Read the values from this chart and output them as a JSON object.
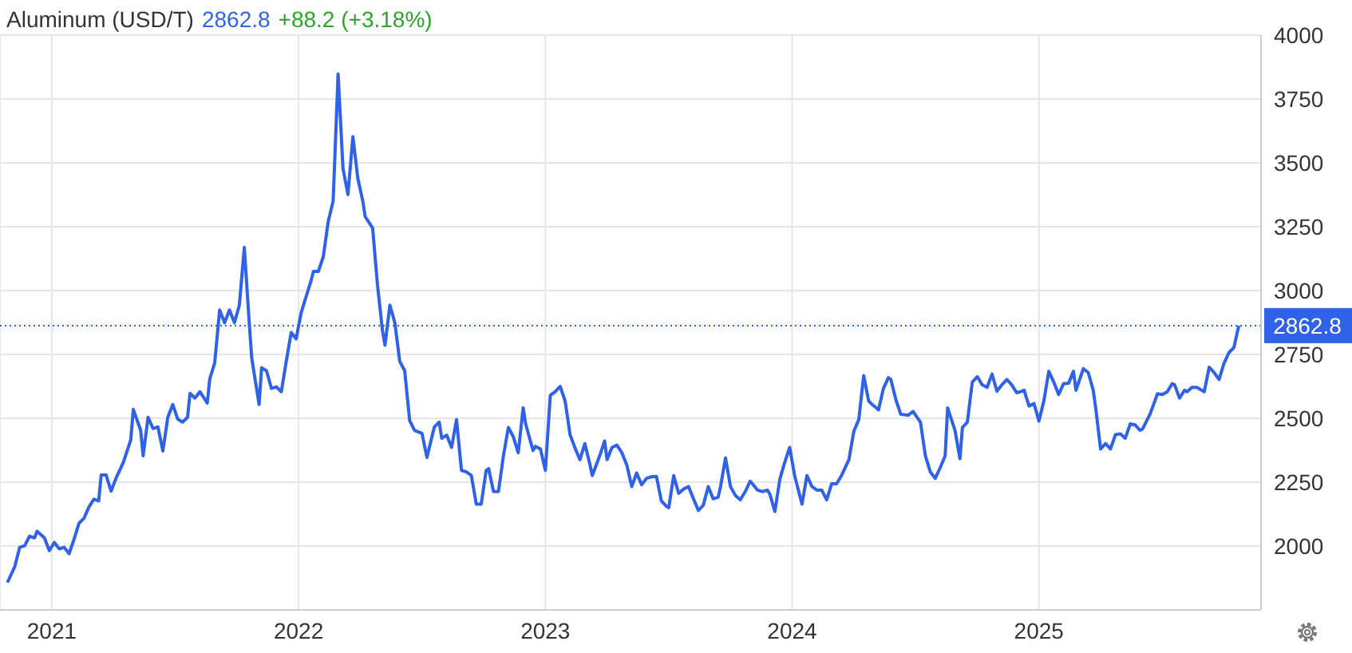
{
  "chart_data": {
    "type": "line",
    "title": "Aluminum (USD/T)",
    "annotations": [
      "2862.8",
      "+88.2 (+3.18%)"
    ],
    "x": [
      2020.82,
      2020.85,
      2020.87,
      2020.89,
      2020.91,
      2020.93,
      2020.94,
      2020.97,
      2020.99,
      2021.01,
      2021.03,
      2021.05,
      2021.07,
      2021.09,
      2021.11,
      2021.13,
      2021.15,
      2021.17,
      2021.19,
      2021.2,
      2021.22,
      2021.24,
      2021.26,
      2021.29,
      2021.32,
      2021.33,
      2021.36,
      2021.37,
      2021.39,
      2021.41,
      2021.43,
      2021.45,
      2021.47,
      2021.49,
      2021.51,
      2021.53,
      2021.55,
      2021.56,
      2021.58,
      2021.6,
      2021.63,
      2021.64,
      2021.66,
      2021.68,
      2021.7,
      2021.72,
      2021.74,
      2021.76,
      2021.78,
      2021.8,
      2021.81,
      2021.84,
      2021.85,
      2021.87,
      2021.89,
      2021.91,
      2021.93,
      2021.95,
      2021.97,
      2021.99,
      2022.01,
      2022.03,
      2022.05,
      2022.06,
      2022.08,
      2022.1,
      2022.12,
      2022.14,
      2022.16,
      2022.18,
      2022.2,
      2022.22,
      2022.24,
      2022.26,
      2022.27,
      2022.3,
      2022.32,
      2022.34,
      2022.35,
      2022.37,
      2022.39,
      2022.41,
      2022.43,
      2022.45,
      2022.47,
      2022.5,
      2022.52,
      2022.55,
      2022.57,
      2022.58,
      2022.6,
      2022.62,
      2022.64,
      2022.66,
      2022.68,
      2022.7,
      2022.72,
      2022.74,
      2022.76,
      2022.77,
      2022.79,
      2022.81,
      2022.83,
      2022.85,
      2022.87,
      2022.89,
      2022.91,
      2022.92,
      2022.95,
      2022.96,
      2022.98,
      2023.0,
      2023.02,
      2023.04,
      2023.06,
      2023.08,
      2023.1,
      2023.12,
      2023.14,
      2023.16,
      2023.18,
      2023.19,
      2023.22,
      2023.24,
      2023.25,
      2023.27,
      2023.29,
      2023.31,
      2023.33,
      2023.35,
      2023.37,
      2023.39,
      2023.41,
      2023.43,
      2023.45,
      2023.47,
      2023.49,
      2023.5,
      2023.52,
      2023.54,
      2023.56,
      2023.58,
      2023.6,
      2023.62,
      2023.64,
      2023.66,
      2023.68,
      2023.7,
      2023.71,
      2023.73,
      2023.75,
      2023.77,
      2023.79,
      2023.81,
      2023.83,
      2023.86,
      2023.88,
      2023.9,
      2023.91,
      2023.93,
      2023.95,
      2023.97,
      2023.99,
      2024.01,
      2024.04,
      2024.06,
      2024.08,
      2024.1,
      2024.12,
      2024.14,
      2024.16,
      2024.18,
      2024.2,
      2024.23,
      2024.25,
      2024.27,
      2024.29,
      2024.31,
      2024.32,
      2024.35,
      2024.37,
      2024.39,
      2024.4,
      2024.42,
      2024.44,
      2024.47,
      2024.49,
      2024.52,
      2024.54,
      2024.56,
      2024.58,
      2024.6,
      2024.62,
      2024.63,
      2024.66,
      2024.68,
      2024.69,
      2024.71,
      2024.73,
      2024.75,
      2024.77,
      2024.79,
      2024.81,
      2024.83,
      2024.85,
      2024.87,
      2024.89,
      2024.91,
      2024.93,
      2024.94,
      2024.96,
      2024.98,
      2025.0,
      2025.02,
      2025.04,
      2025.06,
      2025.08,
      2025.1,
      2025.12,
      2025.14,
      2025.15,
      2025.18,
      2025.2,
      2025.22,
      2025.23,
      2025.25,
      2025.27,
      2025.29,
      2025.31,
      2025.33,
      2025.35,
      2025.37,
      2025.39,
      2025.41,
      2025.42,
      2025.45,
      2025.47,
      2025.48,
      2025.5,
      2025.52,
      2025.54,
      2025.55,
      2025.57,
      2025.59,
      2025.6,
      2025.62,
      2025.64,
      2025.67,
      2025.69,
      2025.71,
      2025.73,
      2025.75,
      2025.77,
      2025.79,
      2025.81
    ],
    "series": [
      {
        "color": "#2f62e8",
        "values": [
          1857,
          1920,
          1995,
          2001,
          2039,
          2032,
          2058,
          2032,
          1982,
          2014,
          1989,
          1995,
          1970,
          2026,
          2089,
          2108,
          2152,
          2183,
          2177,
          2278,
          2278,
          2215,
          2265,
          2328,
          2416,
          2535,
          2453,
          2353,
          2504,
          2460,
          2466,
          2372,
          2504,
          2554,
          2497,
          2485,
          2504,
          2598,
          2579,
          2604,
          2560,
          2654,
          2717,
          2924,
          2874,
          2924,
          2874,
          2943,
          3169,
          2874,
          2736,
          2554,
          2698,
          2686,
          2617,
          2623,
          2604,
          2723,
          2836,
          2811,
          2912,
          2975,
          3037,
          3075,
          3075,
          3132,
          3270,
          3351,
          3848,
          3477,
          3376,
          3602,
          3439,
          3351,
          3289,
          3245,
          3019,
          2843,
          2786,
          2943,
          2874,
          2723,
          2686,
          2491,
          2453,
          2441,
          2347,
          2466,
          2485,
          2422,
          2434,
          2386,
          2495,
          2296,
          2290,
          2276,
          2164,
          2164,
          2296,
          2303,
          2213,
          2213,
          2353,
          2464,
          2428,
          2365,
          2541,
          2478,
          2374,
          2390,
          2380,
          2296,
          2590,
          2604,
          2625,
          2568,
          2436,
          2384,
          2338,
          2401,
          2321,
          2276,
          2353,
          2411,
          2338,
          2386,
          2395,
          2365,
          2317,
          2233,
          2286,
          2240,
          2265,
          2271,
          2273,
          2177,
          2156,
          2150,
          2276,
          2206,
          2223,
          2233,
          2185,
          2139,
          2160,
          2233,
          2185,
          2191,
          2233,
          2345,
          2233,
          2198,
          2181,
          2213,
          2254,
          2219,
          2213,
          2219,
          2202,
          2135,
          2261,
          2328,
          2386,
          2276,
          2164,
          2276,
          2233,
          2219,
          2219,
          2181,
          2244,
          2244,
          2276,
          2338,
          2449,
          2495,
          2667,
          2568,
          2558,
          2533,
          2617,
          2659,
          2652,
          2574,
          2516,
          2512,
          2527,
          2485,
          2353,
          2290,
          2265,
          2307,
          2353,
          2541,
          2453,
          2342,
          2464,
          2485,
          2642,
          2663,
          2631,
          2621,
          2673,
          2606,
          2631,
          2652,
          2631,
          2600,
          2606,
          2610,
          2548,
          2558,
          2489,
          2568,
          2684,
          2642,
          2593,
          2636,
          2637,
          2684,
          2610,
          2694,
          2679,
          2610,
          2541,
          2380,
          2401,
          2380,
          2436,
          2439,
          2422,
          2478,
          2474,
          2453,
          2458,
          2516,
          2568,
          2596,
          2593,
          2604,
          2636,
          2631,
          2579,
          2610,
          2604,
          2621,
          2621,
          2604,
          2700,
          2679,
          2652,
          2715,
          2757,
          2777,
          2862.8
        ]
      }
    ],
    "xlim": [
      2020.79,
      2025.9
    ],
    "xticks": [
      2021,
      2022,
      2023,
      2024,
      2025
    ],
    "ylim": [
      1750,
      4000
    ],
    "yticks": [
      2000,
      2250,
      2500,
      2750,
      3000,
      3250,
      3500,
      3750,
      4000
    ],
    "ref_lines": [
      {
        "axis": "y",
        "value": 2862.8,
        "label": "2862.8",
        "color": "#2f62e8",
        "line_style": "dotted"
      }
    ],
    "grid": true,
    "marker": "none",
    "line_style": "solid"
  }
}
